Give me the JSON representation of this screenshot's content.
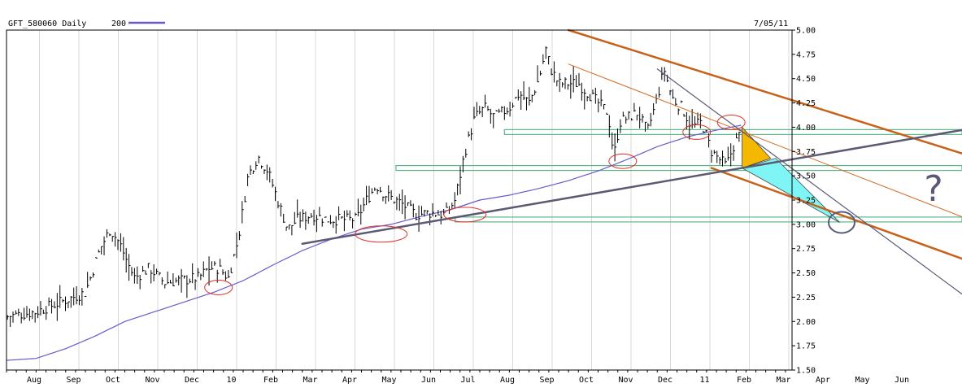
{
  "header": {
    "symbol_label": "GFT_580060 Daily",
    "ma_label": "200",
    "ma_color": "#6a5acd",
    "date_label": "7/05/11"
  },
  "question_mark": "?",
  "chart_data": {
    "type": "line",
    "title": "GFT_580060 Daily",
    "price_style": "ohlc-bars",
    "x_range": [
      "2009-07",
      "2011-07-05"
    ],
    "ylim": [
      1.5,
      5.0
    ],
    "y_axis_position": "right",
    "y_ticks": [
      1.5,
      1.75,
      2.0,
      2.25,
      2.5,
      2.75,
      3.0,
      3.25,
      3.5,
      3.75,
      4.0,
      4.25,
      4.5,
      4.75,
      5.0
    ],
    "y_tick_labels": [
      "1.50",
      "1.75",
      "2.00",
      "2.25",
      "2.50",
      "2.75",
      "3.00",
      "3.25",
      "3.50",
      "3.75",
      "4.00",
      "4.25",
      "4.50",
      "4.75",
      "5.00"
    ],
    "x_tick_labels": [
      "Aug",
      "Sep",
      "Oct",
      "Nov",
      "Dec",
      "10",
      "Feb",
      "Mar",
      "Apr",
      "May",
      "Jun",
      "Jul",
      "Aug",
      "Sep",
      "Oct",
      "Nov",
      "Dec",
      "11",
      "Feb",
      "Mar",
      "Apr",
      "May",
      "Jun"
    ],
    "grid_x": true,
    "grid_y": false,
    "price_anchors": [
      [
        0,
        2.05
      ],
      [
        3,
        2.1
      ],
      [
        8,
        2.3
      ],
      [
        9.5,
        2.75
      ],
      [
        10.5,
        2.95
      ],
      [
        11.5,
        2.8
      ],
      [
        12.5,
        2.55
      ],
      [
        13,
        2.45
      ],
      [
        14.5,
        2.55
      ],
      [
        16,
        2.4
      ],
      [
        17.5,
        2.42
      ],
      [
        19.5,
        2.45
      ],
      [
        20.5,
        2.55
      ],
      [
        21.5,
        2.55
      ],
      [
        22.5,
        2.45
      ],
      [
        23.5,
        2.85
      ],
      [
        24.5,
        3.5
      ],
      [
        25.5,
        3.7
      ],
      [
        26.5,
        3.55
      ],
      [
        27.5,
        3.25
      ],
      [
        28.5,
        2.95
      ],
      [
        29.5,
        3.05
      ],
      [
        31,
        3.1
      ],
      [
        32.5,
        3.05
      ],
      [
        34,
        3.05
      ],
      [
        35.5,
        3.05
      ],
      [
        36.5,
        3.25
      ],
      [
        37.5,
        3.4
      ],
      [
        38.5,
        3.3
      ],
      [
        40,
        3.22
      ],
      [
        41.5,
        3.1
      ],
      [
        43,
        3.12
      ],
      [
        44.5,
        3.1
      ],
      [
        45.5,
        3.25
      ],
      [
        46.5,
        3.75
      ],
      [
        47.5,
        4.1
      ],
      [
        48.5,
        4.2
      ],
      [
        49.5,
        4.1
      ],
      [
        51,
        4.2
      ],
      [
        52,
        4.35
      ],
      [
        53,
        4.25
      ],
      [
        54,
        4.5
      ],
      [
        54.7,
        4.8
      ],
      [
        55.2,
        4.6
      ],
      [
        56,
        4.45
      ],
      [
        57,
        4.45
      ],
      [
        58,
        4.45
      ],
      [
        59,
        4.35
      ],
      [
        60,
        4.25
      ],
      [
        61,
        4.15
      ],
      [
        61.6,
        3.7
      ],
      [
        62.2,
        4.05
      ],
      [
        63,
        4.1
      ],
      [
        64,
        4.15
      ],
      [
        65,
        3.95
      ],
      [
        66,
        4.3
      ],
      [
        66.7,
        4.6
      ],
      [
        67.5,
        4.3
      ],
      [
        68.5,
        4.2
      ],
      [
        69.5,
        4.0
      ],
      [
        70.5,
        4.05
      ],
      [
        71.5,
        3.75
      ],
      [
        72.5,
        3.65
      ],
      [
        73,
        3.6
      ],
      [
        73.7,
        3.8
      ],
      [
        74.5,
        3.95
      ]
    ],
    "ma200_anchors": [
      [
        0,
        1.6
      ],
      [
        3,
        1.62
      ],
      [
        6,
        1.72
      ],
      [
        9,
        1.85
      ],
      [
        12,
        2.0
      ],
      [
        15,
        2.1
      ],
      [
        18,
        2.2
      ],
      [
        21,
        2.3
      ],
      [
        24,
        2.42
      ],
      [
        27,
        2.58
      ],
      [
        30,
        2.73
      ],
      [
        33,
        2.85
      ],
      [
        36,
        2.95
      ],
      [
        39,
        3.0
      ],
      [
        42,
        3.08
      ],
      [
        45,
        3.15
      ],
      [
        48,
        3.25
      ],
      [
        51,
        3.3
      ],
      [
        54,
        3.37
      ],
      [
        57,
        3.45
      ],
      [
        60,
        3.55
      ],
      [
        63,
        3.67
      ],
      [
        66,
        3.8
      ],
      [
        69,
        3.9
      ],
      [
        72,
        3.97
      ],
      [
        74.5,
        4.02
      ]
    ],
    "annotations": {
      "uptrend_line": [
        [
          30,
          2.8
        ],
        [
          90,
          3.85
        ]
      ],
      "downtrend_channel_upper": [
        [
          57,
          5.0
        ],
        [
          90,
          3.95
        ]
      ],
      "downtrend_channel_lower": [
        [
          71.5,
          3.58
        ],
        [
          90,
          2.9
        ]
      ],
      "inner_trendline_thin": [
        [
          57,
          4.65
        ],
        [
          90,
          3.35
        ]
      ],
      "steep_trendline": [
        [
          66,
          4.6
        ],
        [
          90,
          2.8
        ]
      ],
      "support_bands": [
        {
          "level": 3.95,
          "from": 50.5
        },
        {
          "level": 3.58,
          "from": 39.5
        },
        {
          "level": 3.05,
          "from": 45.5
        }
      ],
      "yellow_triangle": [
        [
          74.6,
          4.0
        ],
        [
          74.6,
          3.58
        ],
        [
          77.5,
          3.68
        ]
      ],
      "cyan_triangle": [
        [
          74.6,
          3.58
        ],
        [
          78.0,
          3.68
        ],
        [
          84.5,
          3.02
        ]
      ],
      "circled_points": [
        [
          21.5,
          2.35
        ],
        [
          38,
          2.9
        ],
        [
          46.5,
          3.1
        ],
        [
          62.5,
          3.65
        ],
        [
          70,
          3.95
        ],
        [
          73.5,
          4.05
        ],
        [
          84.7,
          3.02
        ]
      ]
    }
  }
}
